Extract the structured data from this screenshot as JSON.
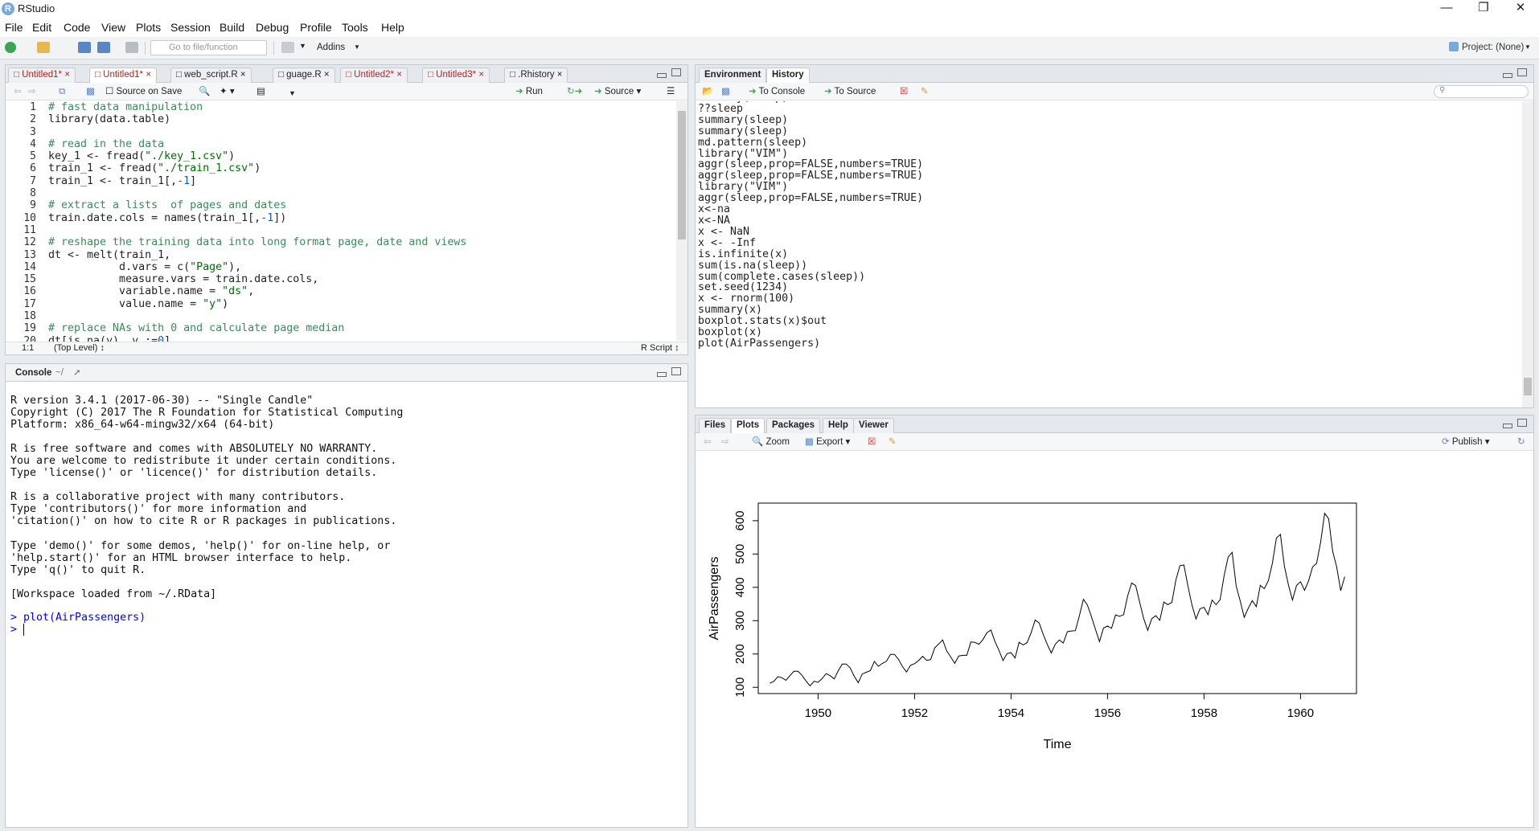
{
  "window": {
    "title": "RStudio"
  },
  "menu": [
    "File",
    "Edit",
    "Code",
    "View",
    "Plots",
    "Session",
    "Build",
    "Debug",
    "Profile",
    "Tools",
    "Help"
  ],
  "toolbar": {
    "goto_placeholder": "Go to file/function",
    "addins": "Addins",
    "project": "Project: (None)"
  },
  "editor": {
    "tabs": [
      {
        "label": "Untitled1*",
        "modified": true,
        "active": false
      },
      {
        "label": "Untitled1*",
        "modified": true,
        "active": true
      },
      {
        "label": "web_script.R",
        "modified": false,
        "active": false
      },
      {
        "label": "guage.R",
        "modified": false,
        "active": false
      },
      {
        "label": "Untitled2*",
        "modified": true,
        "active": false
      },
      {
        "label": "Untitled3*",
        "modified": true,
        "active": false
      },
      {
        "label": ".Rhistory",
        "modified": false,
        "active": false
      }
    ],
    "source_on_save": "Source on Save",
    "run": "Run",
    "source": "Source",
    "line_numbers": "1\n2\n3\n4\n5\n6\n7\n8\n9\n10\n11\n12\n13\n14\n15\n16\n17\n18\n19\n20",
    "status_pos": "1:1",
    "status_scope": "(Top Level) ↕",
    "status_type": "R Script ↕"
  },
  "console": {
    "title": "Console",
    "path": "~/",
    "startup": "R version 3.4.1 (2017-06-30) -- \"Single Candle\"\nCopyright (C) 2017 The R Foundation for Statistical Computing\nPlatform: x86_64-w64-mingw32/x64 (64-bit)\n\nR is free software and comes with ABSOLUTELY NO WARRANTY.\nYou are welcome to redistribute it under certain conditions.\nType 'license()' or 'licence()' for distribution details.\n\nR is a collaborative project with many contributors.\nType 'contributors()' for more information and\n'citation()' on how to cite R or R packages in publications.\n\nType 'demo()' for some demos, 'help()' for on-line help, or\n'help.start()' for an HTML browser interface to help.\nType 'q()' to quit R.\n\n[Workspace loaded from ~/.RData]",
    "command": "> plot(AirPassengers)",
    "prompt": "> "
  },
  "env_pane": {
    "tabs": [
      "Environment",
      "History"
    ],
    "to_console": "To Console",
    "to_source": "To Source",
    "history": "summary(sleep)\n??sleep\nsummary(sleep)\nsummary(sleep)\nmd.pattern(sleep)\nlibrary(\"VIM\")\naggr(sleep,prop=FALSE,numbers=TRUE)\naggr(sleep,prop=FALSE,numbers=TRUE)\nlibrary(\"VIM\")\naggr(sleep,prop=FALSE,numbers=TRUE)\nx<-na\nx<-NA\nx <- NaN\nx <- -Inf\nis.infinite(x)\nsum(is.na(sleep))\nsum(complete.cases(sleep))\nset.seed(1234)\nx <- rnorm(100)\nsummary(x)\nboxplot.stats(x)$out\nboxplot(x)\nplot(AirPassengers)"
  },
  "plots_pane": {
    "tabs": [
      "Files",
      "Plots",
      "Packages",
      "Help",
      "Viewer"
    ],
    "zoom": "Zoom",
    "export": "Export",
    "publish": "Publish"
  },
  "colors": {
    "accent": "#75aadb",
    "modified_tab": "#b3261e",
    "comment": "#3c8a5a",
    "command": "#0000ff"
  },
  "chart_data": {
    "type": "line",
    "x_start": 1949,
    "frequency": 12,
    "values": [
      112,
      118,
      132,
      129,
      121,
      135,
      148,
      148,
      136,
      119,
      104,
      118,
      115,
      126,
      141,
      135,
      125,
      149,
      170,
      170,
      158,
      133,
      114,
      140,
      145,
      150,
      178,
      163,
      172,
      178,
      199,
      199,
      184,
      162,
      146,
      166,
      171,
      180,
      193,
      181,
      183,
      218,
      230,
      242,
      209,
      191,
      172,
      194,
      196,
      196,
      236,
      235,
      229,
      243,
      264,
      272,
      237,
      211,
      180,
      201,
      204,
      188,
      235,
      227,
      234,
      264,
      302,
      293,
      259,
      229,
      203,
      229,
      242,
      233,
      267,
      269,
      270,
      315,
      364,
      347,
      312,
      274,
      237,
      278,
      284,
      277,
      317,
      313,
      318,
      374,
      413,
      405,
      355,
      306,
      271,
      306,
      315,
      301,
      356,
      348,
      355,
      422,
      465,
      467,
      404,
      347,
      305,
      336,
      340,
      318,
      362,
      348,
      363,
      435,
      491,
      505,
      404,
      359,
      310,
      337,
      360,
      342,
      406,
      396,
      420,
      472,
      548,
      559,
      463,
      407,
      362,
      405,
      417,
      391,
      419,
      461,
      472,
      535,
      622,
      606,
      508,
      461,
      390,
      432
    ],
    "xlabel": "Time",
    "ylabel": "AirPassengers",
    "xticks": [
      "1950",
      "1952",
      "1954",
      "1956",
      "1958",
      "1960"
    ],
    "yticks": [
      "100",
      "200",
      "300",
      "400",
      "500",
      "600"
    ],
    "xlim": [
      1948.76,
      1961.16
    ],
    "ylim": [
      81.2,
      652.8
    ]
  }
}
